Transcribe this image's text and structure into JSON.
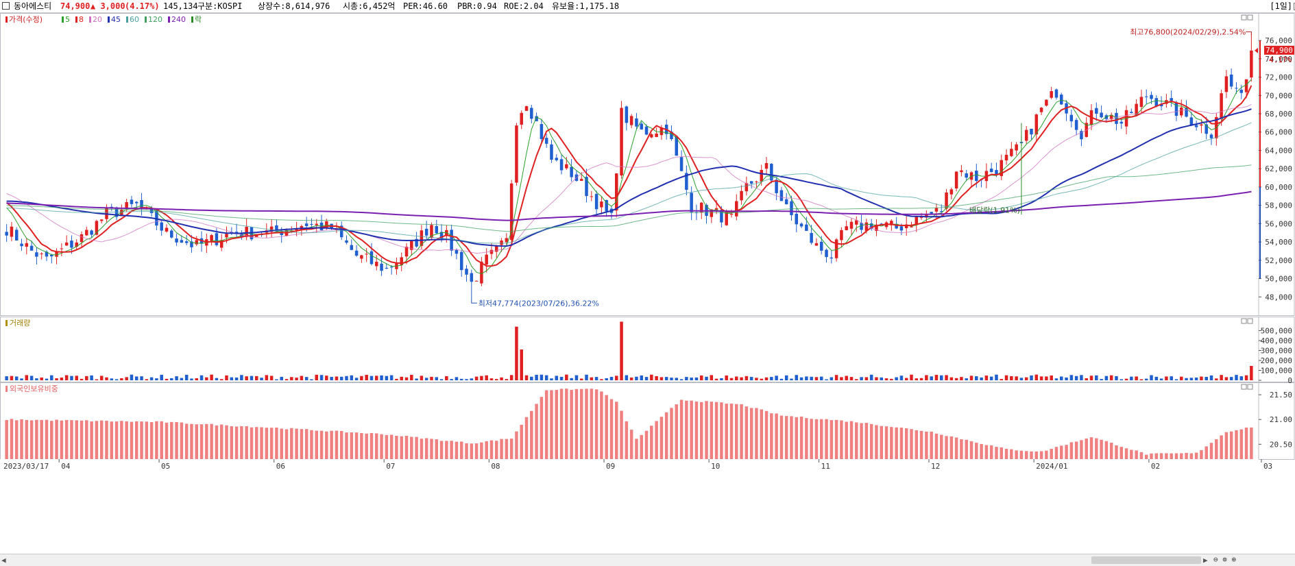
{
  "header": {
    "name": "동아에스티",
    "price": "74,900",
    "change": "▲ 3,000",
    "change_pct": "(4.17%)",
    "volume": "145,134",
    "market": "구분:KOSPI",
    "shares": "상장수:8,614,976",
    "market_cap": "시총:6,452억",
    "per": "PER:46.60",
    "pbr": "PBR:0.94",
    "roe": "ROE:2.04",
    "reserve": "유보율:1,175.18",
    "period": "[1일]",
    "colors": {
      "up": "#e02020",
      "down": "#1f5fd0"
    }
  },
  "legend": {
    "price_label": "가격(수정)",
    "ma_labels": [
      "5",
      "8",
      "20",
      "45",
      "60",
      "120",
      "240"
    ],
    "ma_colors": [
      "#2aa02a",
      "#e02020",
      "#d070c0",
      "#1f2fb0",
      "#4aa0a0",
      "#40a060",
      "#7a20b0"
    ],
    "rak": "락",
    "volume_label": "거래량",
    "foreign_label": "외국인보유비중"
  },
  "annotations": {
    "high": "최고76,800(2024/02/29),2.54%",
    "low": "최저47,774(2023/07/26),36.22%",
    "dividend": "배당락(1.91%)",
    "price_tag": "74,900",
    "pct_tag": "4.17%"
  },
  "chart_data": [
    {
      "type": "candlestick",
      "title": "가격(수정)",
      "x_range": [
        "2023/03/17",
        "2024/02/29"
      ],
      "x_tick_labels": [
        "2023/03/17",
        "04",
        "05",
        "06",
        "07",
        "08",
        "09",
        "10",
        "11",
        "12",
        "2024/01",
        "02",
        "03"
      ],
      "y_ticks": [
        48000,
        50000,
        52000,
        54000,
        56000,
        58000,
        60000,
        62000,
        64000,
        66000,
        68000,
        70000,
        72000,
        74000,
        76000
      ],
      "y_tick_labels": [
        "48,000",
        "50,000",
        "52,000",
        "54,000",
        "56,000",
        "58,000",
        "60,000",
        "62,000",
        "64,000",
        "66,000",
        "68,000",
        "70,000",
        "72,000",
        "74,000",
        "76,000"
      ],
      "ylim": [
        46000,
        79000
      ],
      "close_keypoints": [
        {
          "date": "2023/03/17",
          "close": 55500
        },
        {
          "date": "2023/03/24",
          "close": 53000
        },
        {
          "date": "2023/03/29",
          "close": 52000
        },
        {
          "date": "2023/04/07",
          "close": 54500
        },
        {
          "date": "2023/04/14",
          "close": 57000
        },
        {
          "date": "2023/04/24",
          "close": 58000
        },
        {
          "date": "2023/05/02",
          "close": 55000
        },
        {
          "date": "2023/05/10",
          "close": 53500
        },
        {
          "date": "2023/05/19",
          "close": 55000
        },
        {
          "date": "2023/05/31",
          "close": 55000
        },
        {
          "date": "2023/06/09",
          "close": 56000
        },
        {
          "date": "2023/06/16",
          "close": 55500
        },
        {
          "date": "2023/06/23",
          "close": 52500
        },
        {
          "date": "2023/07/03",
          "close": 51000
        },
        {
          "date": "2023/07/10",
          "close": 53500
        },
        {
          "date": "2023/07/14",
          "close": 56000
        },
        {
          "date": "2023/07/19",
          "close": 54500
        },
        {
          "date": "2023/07/26",
          "close": 49500
        },
        {
          "date": "2023/07/31",
          "close": 52000
        },
        {
          "date": "2023/08/04",
          "close": 54000
        },
        {
          "date": "2023/08/08",
          "close": 67500
        },
        {
          "date": "2023/08/10",
          "close": 69500
        },
        {
          "date": "2023/08/14",
          "close": 67000
        },
        {
          "date": "2023/08/17",
          "close": 63000
        },
        {
          "date": "2023/08/23",
          "close": 61500
        },
        {
          "date": "2023/08/29",
          "close": 59000
        },
        {
          "date": "2023/09/04",
          "close": 56500
        },
        {
          "date": "2023/09/06",
          "close": 68000
        },
        {
          "date": "2023/09/12",
          "close": 66000
        },
        {
          "date": "2023/09/19",
          "close": 66500
        },
        {
          "date": "2023/09/26",
          "close": 58000
        },
        {
          "date": "2023/10/06",
          "close": 56500
        },
        {
          "date": "2023/10/11",
          "close": 60000
        },
        {
          "date": "2023/10/17",
          "close": 62000
        },
        {
          "date": "2023/10/23",
          "close": 57500
        },
        {
          "date": "2023/10/31",
          "close": 53500
        },
        {
          "date": "2023/11/03",
          "close": 52500
        },
        {
          "date": "2023/11/08",
          "close": 55500
        },
        {
          "date": "2023/11/15",
          "close": 56000
        },
        {
          "date": "2023/11/22",
          "close": 55500
        },
        {
          "date": "2023/11/28",
          "close": 56500
        },
        {
          "date": "2023/12/05",
          "close": 57500
        },
        {
          "date": "2023/12/08",
          "close": 62000
        },
        {
          "date": "2023/12/14",
          "close": 61000
        },
        {
          "date": "2023/12/20",
          "close": 62000
        },
        {
          "date": "2023/12/27",
          "close": 64500
        },
        {
          "date": "2024/01/02",
          "close": 68500
        },
        {
          "date": "2024/01/05",
          "close": 70500
        },
        {
          "date": "2024/01/12",
          "close": 66000
        },
        {
          "date": "2024/01/17",
          "close": 68500
        },
        {
          "date": "2024/01/24",
          "close": 67000
        },
        {
          "date": "2024/01/31",
          "close": 70000
        },
        {
          "date": "2024/02/06",
          "close": 69000
        },
        {
          "date": "2024/02/14",
          "close": 67000
        },
        {
          "date": "2024/02/19",
          "close": 66000
        },
        {
          "date": "2024/02/22",
          "close": 72000
        },
        {
          "date": "2024/02/26",
          "close": 70000
        },
        {
          "date": "2024/02/28",
          "close": 71900
        },
        {
          "date": "2024/02/29",
          "close": 74900
        }
      ],
      "moving_averages": [
        "5",
        "8",
        "20",
        "45",
        "60",
        "120",
        "240"
      ],
      "high": {
        "value": 76800,
        "date": "2024/02/29",
        "pct": 2.54
      },
      "low": {
        "value": 47774,
        "date": "2023/07/26",
        "pct": 36.22
      },
      "last": {
        "value": 74900,
        "change_pct": 4.17
      }
    },
    {
      "type": "bar",
      "title": "거래량",
      "y_ticks": [
        0,
        100000,
        200000,
        300000,
        400000,
        500000
      ],
      "y_tick_labels": [
        "0",
        "100,000",
        "200,000",
        "300,000",
        "400,000",
        "500,000"
      ],
      "ylim": [
        0,
        600000
      ],
      "notable": [
        {
          "date": "2023/08/08",
          "value": 540000
        },
        {
          "date": "2023/08/09",
          "value": 310000
        },
        {
          "date": "2023/09/06",
          "value": 590000
        },
        {
          "date": "2024/02/29",
          "value": 145134
        }
      ],
      "typical_range": [
        10000,
        90000
      ]
    },
    {
      "type": "bar",
      "title": "외국인보유비중",
      "y_ticks": [
        20.5,
        21.0,
        21.5
      ],
      "y_tick_labels": [
        "20.50",
        "21.00",
        "21.50"
      ],
      "ylim": [
        20.2,
        21.75
      ],
      "keypoints": [
        {
          "date": "2023/03/17",
          "value": 21.0
        },
        {
          "date": "2023/05/01",
          "value": 20.95
        },
        {
          "date": "2023/06/01",
          "value": 20.83
        },
        {
          "date": "2023/07/03",
          "value": 20.7
        },
        {
          "date": "2023/07/26",
          "value": 20.52
        },
        {
          "date": "2023/08/07",
          "value": 20.62
        },
        {
          "date": "2023/08/16",
          "value": 21.6
        },
        {
          "date": "2023/08/30",
          "value": 21.62
        },
        {
          "date": "2023/09/05",
          "value": 21.35
        },
        {
          "date": "2023/09/11",
          "value": 20.6
        },
        {
          "date": "2023/09/22",
          "value": 21.4
        },
        {
          "date": "2023/10/10",
          "value": 21.3
        },
        {
          "date": "2023/10/20",
          "value": 21.08
        },
        {
          "date": "2023/11/10",
          "value": 20.95
        },
        {
          "date": "2023/12/01",
          "value": 20.75
        },
        {
          "date": "2023/12/22",
          "value": 20.4
        },
        {
          "date": "2024/01/02",
          "value": 20.35
        },
        {
          "date": "2024/01/16",
          "value": 20.65
        },
        {
          "date": "2024/01/31",
          "value": 20.3
        },
        {
          "date": "2024/02/14",
          "value": 20.32
        },
        {
          "date": "2024/02/22",
          "value": 20.75
        },
        {
          "date": "2024/02/29",
          "value": 20.85
        }
      ]
    }
  ]
}
